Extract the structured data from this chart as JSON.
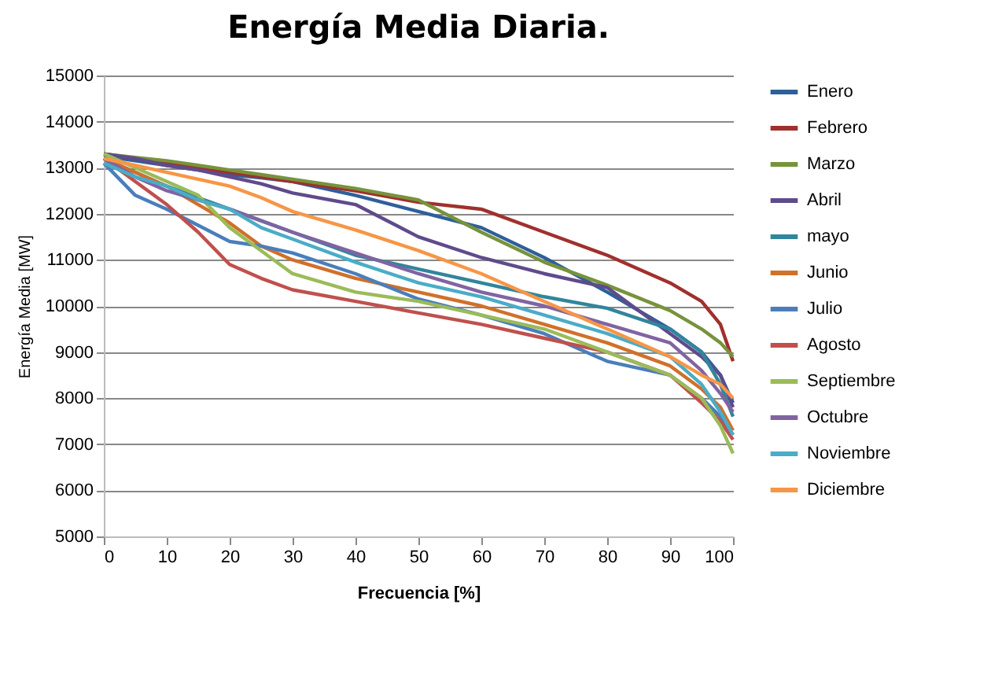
{
  "chart_data": {
    "type": "line",
    "title": "Energía Media Diaria.",
    "xlabel": "Frecuencia [%]",
    "ylabel": "Energía Media [MW]",
    "x": [
      0,
      5,
      10,
      15,
      20,
      25,
      30,
      40,
      50,
      60,
      70,
      80,
      90,
      95,
      98,
      100
    ],
    "xlim": [
      0,
      100
    ],
    "xticks": [
      0,
      10,
      20,
      30,
      40,
      50,
      60,
      70,
      80,
      90,
      100
    ],
    "ylim": [
      5000,
      15000
    ],
    "yticks": [
      5000,
      6000,
      7000,
      8000,
      9000,
      10000,
      11000,
      12000,
      13000,
      14000,
      15000
    ],
    "grid": "y",
    "legend": "right",
    "marker": "none",
    "line_style": "solid",
    "series": [
      {
        "name": "Enero",
        "color": "#2e5f9a",
        "values": [
          13250,
          13150,
          13050,
          12950,
          12850,
          12780,
          12700,
          12400,
          12050,
          11700,
          11050,
          10300,
          9500,
          9000,
          8500,
          7900
        ]
      },
      {
        "name": "Febrero",
        "color": "#a0302d",
        "values": [
          13300,
          13200,
          13120,
          13000,
          12900,
          12800,
          12700,
          12500,
          12250,
          12100,
          11600,
          11100,
          10500,
          10100,
          9600,
          8800
        ]
      },
      {
        "name": "Marzo",
        "color": "#77933c",
        "values": [
          13300,
          13220,
          13150,
          13050,
          12950,
          12850,
          12750,
          12550,
          12300,
          11600,
          10950,
          10450,
          9900,
          9500,
          9200,
          8900
        ]
      },
      {
        "name": "Abril",
        "color": "#5f4b8b",
        "values": [
          13300,
          13200,
          13050,
          12950,
          12800,
          12650,
          12450,
          12200,
          11500,
          11050,
          10700,
          10400,
          9400,
          8900,
          8500,
          7800
        ]
      },
      {
        "name": "mayo",
        "color": "#31859c",
        "values": [
          13200,
          12900,
          12600,
          12350,
          12100,
          11850,
          11600,
          11100,
          10800,
          10500,
          10200,
          9950,
          9500,
          9000,
          8300,
          7600
        ]
      },
      {
        "name": "Junio",
        "color": "#d0702a",
        "values": [
          13200,
          12900,
          12600,
          12200,
          11800,
          11300,
          11000,
          10600,
          10300,
          10000,
          9600,
          9200,
          8700,
          8200,
          7800,
          7300
        ]
      },
      {
        "name": "Julio",
        "color": "#4a7ebb",
        "values": [
          13100,
          12400,
          12100,
          11750,
          11400,
          11300,
          11150,
          10700,
          10150,
          9800,
          9400,
          8800,
          8500,
          8000,
          7600,
          7200
        ]
      },
      {
        "name": "Agosto",
        "color": "#c0504d",
        "values": [
          13200,
          12700,
          12200,
          11600,
          10900,
          10600,
          10350,
          10100,
          9850,
          9600,
          9300,
          9000,
          8500,
          7900,
          7500,
          7100
        ]
      },
      {
        "name": "Septiembre",
        "color": "#9bbb59",
        "values": [
          13300,
          13000,
          12700,
          12400,
          11700,
          11200,
          10700,
          10300,
          10100,
          9800,
          9500,
          9000,
          8500,
          8000,
          7400,
          6800
        ]
      },
      {
        "name": "Octubre",
        "color": "#8064a2",
        "values": [
          13200,
          12800,
          12500,
          12300,
          12100,
          11850,
          11600,
          11150,
          10700,
          10300,
          10000,
          9600,
          9200,
          8600,
          8100,
          7700
        ]
      },
      {
        "name": "Noviembre",
        "color": "#4bacc6",
        "values": [
          13100,
          12800,
          12600,
          12300,
          12100,
          11700,
          11450,
          10950,
          10500,
          10200,
          9800,
          9400,
          8900,
          8300,
          7700,
          7200
        ]
      },
      {
        "name": "Diciembre",
        "color": "#f79646",
        "values": [
          13200,
          13050,
          12900,
          12750,
          12600,
          12350,
          12050,
          11650,
          11200,
          10700,
          10100,
          9500,
          8900,
          8500,
          8300,
          8000
        ]
      }
    ]
  }
}
